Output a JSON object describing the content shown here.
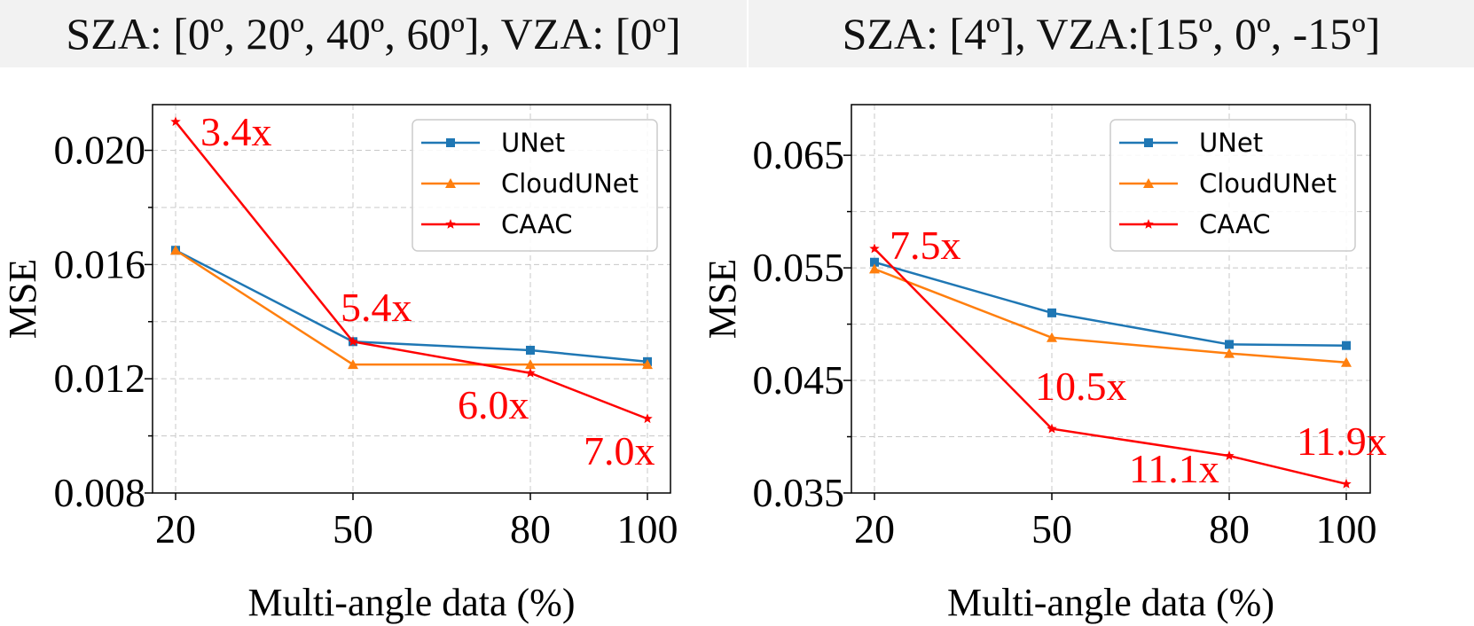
{
  "chart_data": [
    {
      "type": "line",
      "title": "SZA: [0º, 20º, 40º, 60º], VZA: [0º]",
      "xlabel": "Multi-angle data (%)",
      "ylabel": "MSE",
      "categories": [
        "20",
        "50",
        "80",
        "100"
      ],
      "x": [
        20,
        50,
        80,
        100
      ],
      "ylim": [
        0.008,
        0.0216
      ],
      "yticks": [
        "0.008",
        "0.012",
        "0.016",
        "0.020"
      ],
      "grid": true,
      "legend_position": "top-right",
      "series": [
        {
          "name": "UNet",
          "color": "#1f77b4",
          "marker": "square",
          "values": [
            0.0165,
            0.0133,
            0.013,
            0.0126
          ]
        },
        {
          "name": "CloudUNet",
          "color": "#ff7f0e",
          "marker": "triangle",
          "values": [
            0.0165,
            0.0125,
            0.0125,
            0.0125
          ]
        },
        {
          "name": "CAAC",
          "color": "#ff0000",
          "marker": "star",
          "values": [
            0.021,
            0.0133,
            0.0122,
            0.0106
          ]
        }
      ],
      "annotations": [
        "3.4x",
        "5.4x",
        "6.0x",
        "7.0x"
      ]
    },
    {
      "type": "line",
      "title": "SZA: [4º], VZA:[15º, 0º, -15º]",
      "xlabel": "Multi-angle data (%)",
      "ylabel": "MSE",
      "categories": [
        "20",
        "50",
        "80",
        "100"
      ],
      "x": [
        20,
        50,
        80,
        100
      ],
      "ylim": [
        0.035,
        0.0695
      ],
      "yticks": [
        "0.035",
        "0.045",
        "0.055",
        "0.065"
      ],
      "grid": true,
      "legend_position": "top-right",
      "series": [
        {
          "name": "UNet",
          "color": "#1f77b4",
          "marker": "square",
          "values": [
            0.0555,
            0.051,
            0.0482,
            0.0481
          ]
        },
        {
          "name": "CloudUNet",
          "color": "#ff7f0e",
          "marker": "triangle",
          "values": [
            0.0549,
            0.0488,
            0.0474,
            0.0466
          ]
        },
        {
          "name": "CAAC",
          "color": "#ff0000",
          "marker": "star",
          "values": [
            0.0567,
            0.0407,
            0.0383,
            0.0358
          ]
        }
      ],
      "annotations": [
        "7.5x",
        "10.5x",
        "11.1x",
        "11.9x"
      ]
    }
  ]
}
